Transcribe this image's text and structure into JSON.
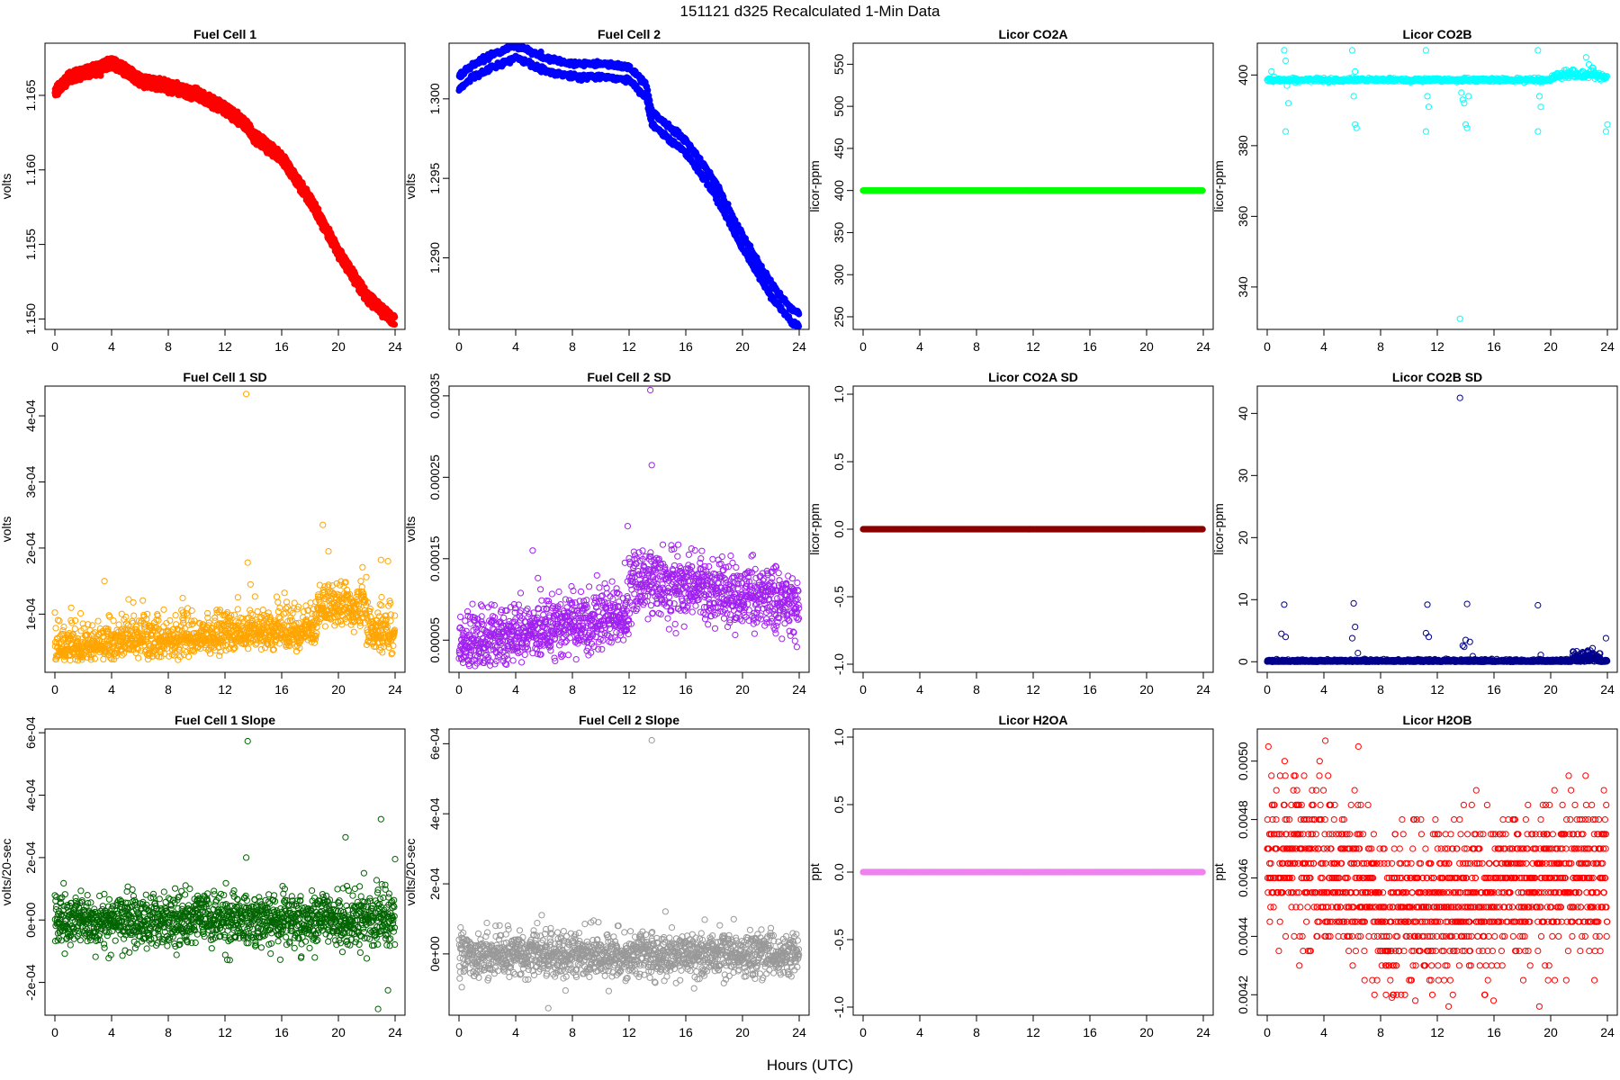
{
  "figure": {
    "title": "151121    d325   Recalculated 1-Min Data",
    "xlabel": "Hours (UTC)"
  },
  "chart_data": [
    {
      "type": "scatter",
      "title": "Fuel Cell 1",
      "ylabel": "volts",
      "color": "#ff0000",
      "filled": true,
      "xlim": [
        0,
        24
      ],
      "xticks": [
        "0",
        "4",
        "8",
        "12",
        "16",
        "20",
        "24"
      ],
      "ylim": [
        1.1493,
        1.1685
      ],
      "yticks": [
        {
          "v": 1.15,
          "label": "1.150"
        },
        {
          "v": 1.155,
          "label": "1.155"
        },
        {
          "v": 1.16,
          "label": "1.160"
        },
        {
          "v": 1.165,
          "label": "1.165"
        }
      ],
      "pattern": "fc1"
    },
    {
      "type": "scatter",
      "title": "Fuel Cell 2",
      "ylabel": "volts",
      "color": "#0000ff",
      "filled": true,
      "xlim": [
        0,
        24
      ],
      "xticks": [
        "0",
        "4",
        "8",
        "12",
        "16",
        "20",
        "24"
      ],
      "ylim": [
        1.2855,
        1.3035
      ],
      "yticks": [
        {
          "v": 1.29,
          "label": "1.290"
        },
        {
          "v": 1.295,
          "label": "1.295"
        },
        {
          "v": 1.3,
          "label": "1.300"
        }
      ],
      "pattern": "fc2"
    },
    {
      "type": "scatter",
      "title": "Licor CO2A",
      "ylabel": "licor-ppm",
      "color": "#00ff00",
      "filled": true,
      "xlim": [
        0,
        24
      ],
      "xticks": [
        "0",
        "4",
        "8",
        "12",
        "16",
        "20",
        "24"
      ],
      "ylim": [
        235,
        575
      ],
      "yticks": [
        {
          "v": 250,
          "label": "250"
        },
        {
          "v": 300,
          "label": "300"
        },
        {
          "v": 350,
          "label": "350"
        },
        {
          "v": 400,
          "label": "400"
        },
        {
          "v": 450,
          "label": "450"
        },
        {
          "v": 500,
          "label": "500"
        },
        {
          "v": 550,
          "label": "550"
        }
      ],
      "pattern": "flat",
      "flat_value": 400
    },
    {
      "type": "scatter",
      "title": "Licor CO2B",
      "ylabel": "licor-ppm",
      "color": "#00ffff",
      "filled": false,
      "xlim": [
        0,
        24
      ],
      "xticks": [
        "0",
        "4",
        "8",
        "12",
        "16",
        "20",
        "24"
      ],
      "ylim": [
        328,
        409
      ],
      "yticks": [
        {
          "v": 340,
          "label": "340"
        },
        {
          "v": 360,
          "label": "360"
        },
        {
          "v": 380,
          "label": "380"
        },
        {
          "v": 400,
          "label": "400"
        }
      ],
      "pattern": "co2b"
    },
    {
      "type": "scatter",
      "title": "Fuel Cell 1 SD",
      "ylabel": "volts",
      "color": "#ffa500",
      "filled": false,
      "xlim": [
        0,
        24
      ],
      "xticks": [
        "0",
        "4",
        "8",
        "12",
        "16",
        "20",
        "24"
      ],
      "ylim": [
        1.2e-05,
        0.000445
      ],
      "yticks": [
        {
          "v": 0.0001,
          "label": "1e-04"
        },
        {
          "v": 0.0002,
          "label": "2e-04"
        },
        {
          "v": 0.0003,
          "label": "3e-04"
        },
        {
          "v": 0.0004,
          "label": "4e-04"
        }
      ],
      "pattern": "fc1sd"
    },
    {
      "type": "scatter",
      "title": "Fuel Cell 2 SD",
      "ylabel": "volts",
      "color": "#a020f0",
      "filled": false,
      "xlim": [
        0,
        24
      ],
      "xticks": [
        "0",
        "4",
        "8",
        "12",
        "16",
        "20",
        "24"
      ],
      "ylim": [
        1.05e-05,
        0.000362
      ],
      "yticks": [
        {
          "v": 5e-05,
          "label": "0.00005"
        },
        {
          "v": 0.00015,
          "label": "0.00015"
        },
        {
          "v": 0.00025,
          "label": "0.00025"
        },
        {
          "v": 0.00035,
          "label": "0.00035"
        }
      ],
      "pattern": "fc2sd"
    },
    {
      "type": "scatter",
      "title": "Licor CO2A SD",
      "ylabel": "licor-ppm",
      "color": "#8b0000",
      "filled": true,
      "xlim": [
        0,
        24
      ],
      "xticks": [
        "0",
        "4",
        "8",
        "12",
        "16",
        "20",
        "24"
      ],
      "ylim": [
        -1.06,
        1.06
      ],
      "yticks": [
        {
          "v": -1,
          "label": "-1.0"
        },
        {
          "v": -0.5,
          "label": "-0.5"
        },
        {
          "v": 0,
          "label": "0.0"
        },
        {
          "v": 0.5,
          "label": "0.5"
        },
        {
          "v": 1,
          "label": "1.0"
        }
      ],
      "pattern": "flat",
      "flat_value": 0
    },
    {
      "type": "scatter",
      "title": "Licor CO2B SD",
      "ylabel": "licor-ppm",
      "color": "#00008b",
      "filled": false,
      "xlim": [
        0,
        24
      ],
      "xticks": [
        "0",
        "4",
        "8",
        "12",
        "16",
        "20",
        "24"
      ],
      "ylim": [
        -1.7,
        44.4
      ],
      "yticks": [
        {
          "v": 0,
          "label": "0"
        },
        {
          "v": 10,
          "label": "10"
        },
        {
          "v": 20,
          "label": "20"
        },
        {
          "v": 30,
          "label": "30"
        },
        {
          "v": 40,
          "label": "40"
        }
      ],
      "pattern": "co2bsd"
    },
    {
      "type": "scatter",
      "title": "Fuel Cell 1 Slope",
      "ylabel": "volts/20-sec",
      "color": "#006400",
      "filled": false,
      "xlim": [
        0,
        24
      ],
      "xticks": [
        "0",
        "4",
        "8",
        "12",
        "16",
        "20",
        "24"
      ],
      "ylim": [
        -0.000305,
        0.000612
      ],
      "yticks": [
        {
          "v": -0.0002,
          "label": "-2e-04"
        },
        {
          "v": 0,
          "label": "0e+00"
        },
        {
          "v": 0.0002,
          "label": "2e-04"
        },
        {
          "v": 0.0004,
          "label": "4e-04"
        },
        {
          "v": 0.0006,
          "label": "6e-04"
        }
      ],
      "pattern": "fc1slope"
    },
    {
      "type": "scatter",
      "title": "Fuel Cell 2 Slope",
      "ylabel": "volts/20-sec",
      "color": "#999999",
      "filled": false,
      "xlim": [
        0,
        24
      ],
      "xticks": [
        "0",
        "4",
        "8",
        "12",
        "16",
        "20",
        "24"
      ],
      "ylim": [
        -0.000175,
        0.000642
      ],
      "yticks": [
        {
          "v": 0,
          "label": "0e+00"
        },
        {
          "v": 0.0002,
          "label": "2e-04"
        },
        {
          "v": 0.0004,
          "label": "4e-04"
        },
        {
          "v": 0.0006,
          "label": "6e-04"
        }
      ],
      "pattern": "fc2slope"
    },
    {
      "type": "scatter",
      "title": "Licor H2OA",
      "ylabel": "ppt",
      "color": "#ee82ee",
      "filled": true,
      "xlim": [
        0,
        24
      ],
      "xticks": [
        "0",
        "4",
        "8",
        "12",
        "16",
        "20",
        "24"
      ],
      "ylim": [
        -1.06,
        1.06
      ],
      "yticks": [
        {
          "v": -1,
          "label": "-1.0"
        },
        {
          "v": -0.5,
          "label": "-0.5"
        },
        {
          "v": 0,
          "label": "0.0"
        },
        {
          "v": 0.5,
          "label": "0.5"
        },
        {
          "v": 1,
          "label": "1.0"
        }
      ],
      "pattern": "flat",
      "flat_value": 0
    },
    {
      "type": "scatter",
      "title": "Licor H2OB",
      "ylabel": "ppt",
      "color": "#ff0000",
      "filled": false,
      "xlim": [
        0,
        24
      ],
      "xticks": [
        "0",
        "4",
        "8",
        "12",
        "16",
        "20",
        "24"
      ],
      "ylim": [
        0.00413,
        0.00511
      ],
      "yticks": [
        {
          "v": 0.0042,
          "label": "0.0042"
        },
        {
          "v": 0.0044,
          "label": "0.0044"
        },
        {
          "v": 0.0046,
          "label": "0.0046"
        },
        {
          "v": 0.0048,
          "label": "0.0048"
        },
        {
          "v": 0.005,
          "label": "0.0050"
        }
      ],
      "pattern": "h2ob"
    }
  ]
}
